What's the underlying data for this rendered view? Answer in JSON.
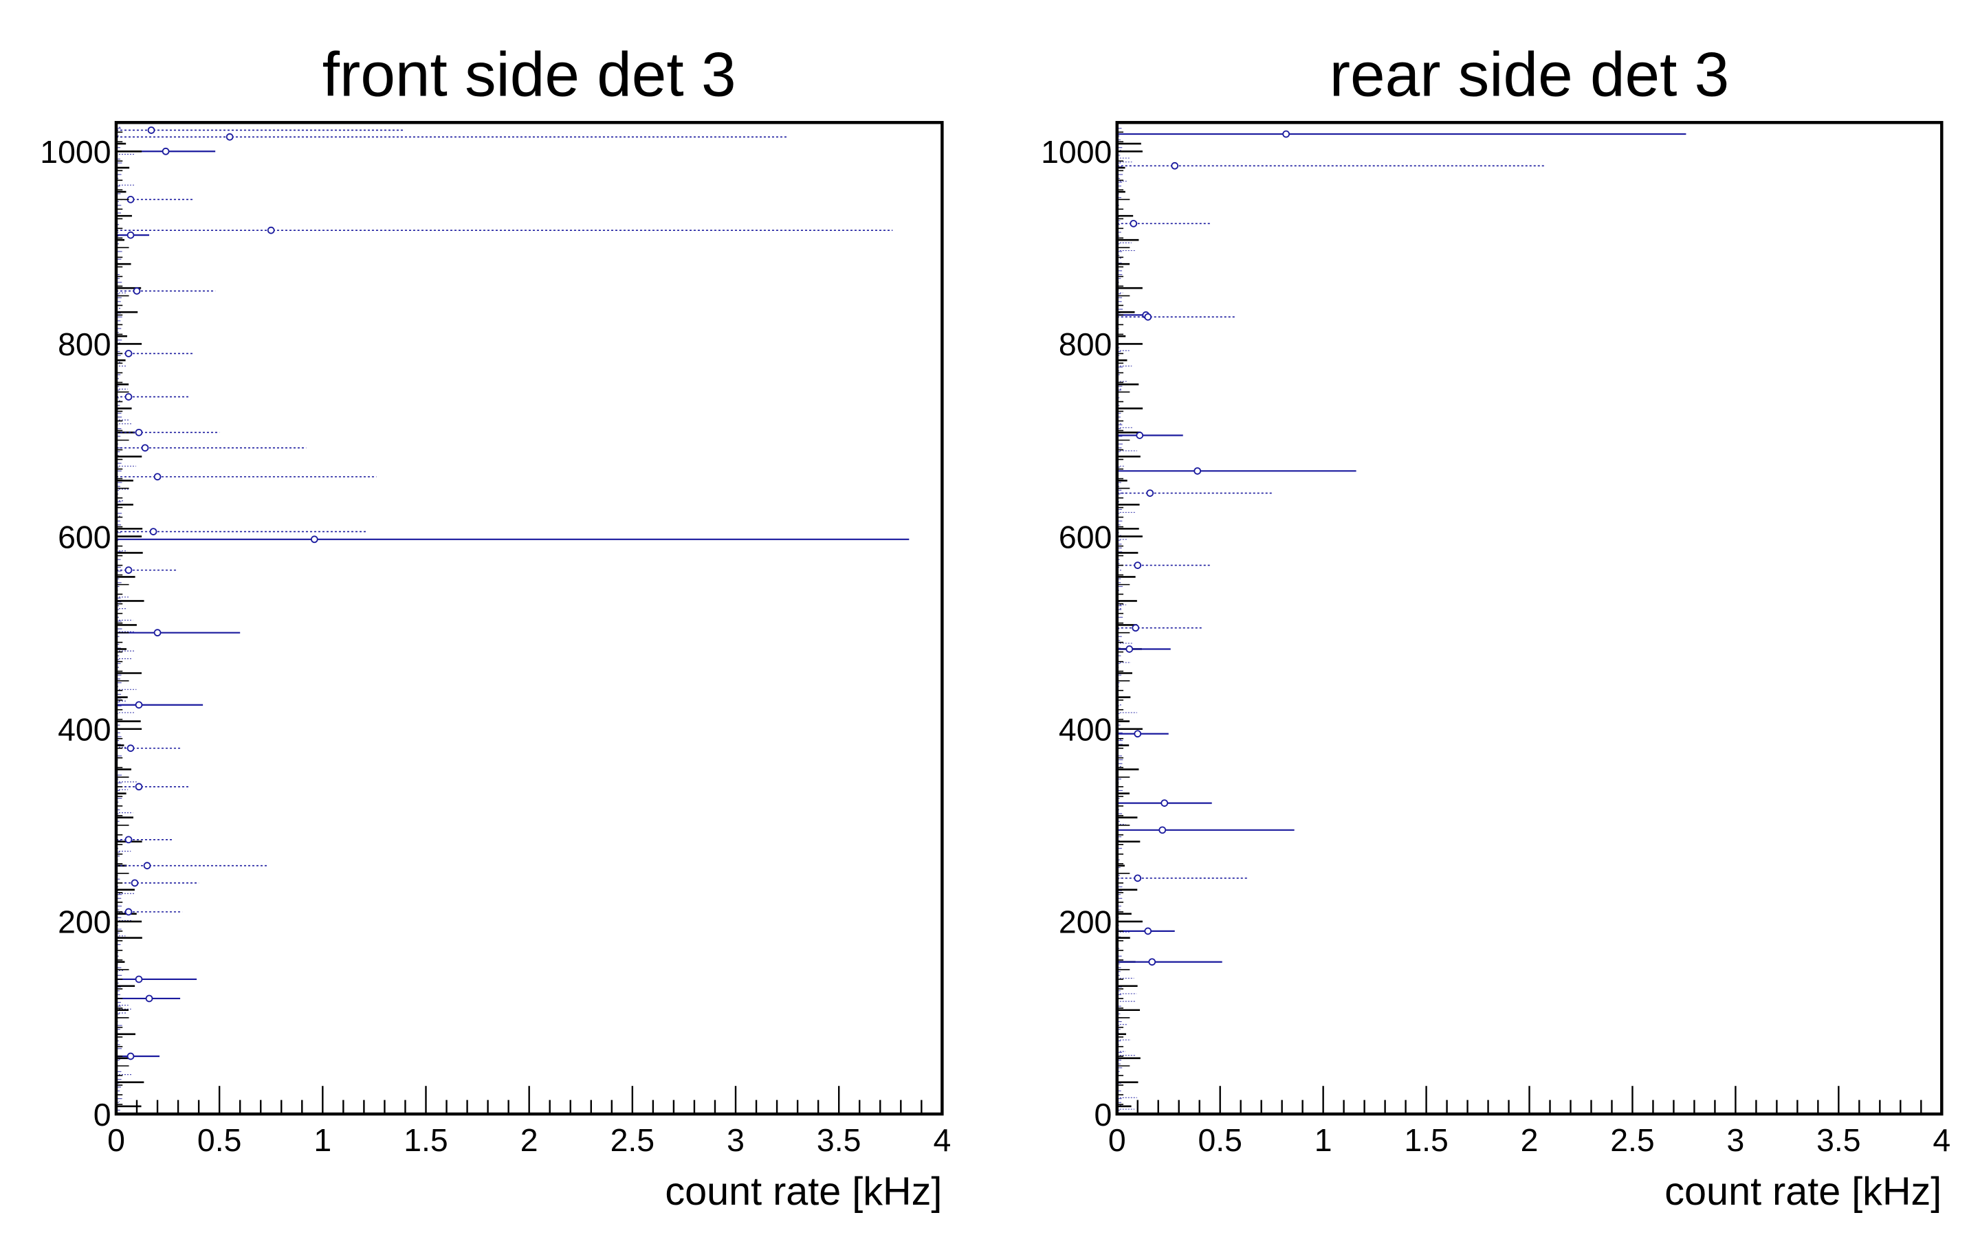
{
  "colors": {
    "series": "#1a1a9e",
    "axis": "#000000",
    "background": "#ffffff"
  },
  "chart_data": [
    {
      "type": "scatter",
      "title": "front side det 3",
      "xlabel": "count rate [kHz]",
      "ylabel": "",
      "xlim": [
        0,
        4
      ],
      "ylim": [
        0,
        1030
      ],
      "xticks": [
        "0",
        "0.5",
        "1",
        "1.5",
        "2",
        "2.5",
        "3",
        "3.5",
        "4"
      ],
      "yticks": [
        "0",
        "200",
        "400",
        "600",
        "800",
        "1000"
      ],
      "grid": false,
      "points_solid": [
        {
          "y": 1000,
          "x": 0.24,
          "xmin": 0.0,
          "xmax": 0.48
        },
        {
          "y": 913,
          "x": 0.07,
          "xmin": 0.0,
          "xmax": 0.16
        },
        {
          "y": 597,
          "x": 0.96,
          "xmin": 0.0,
          "xmax": 3.84
        },
        {
          "y": 500,
          "x": 0.2,
          "xmin": 0.0,
          "xmax": 0.6
        },
        {
          "y": 425,
          "x": 0.11,
          "xmin": 0.0,
          "xmax": 0.42
        },
        {
          "y": 140,
          "x": 0.11,
          "xmin": 0.0,
          "xmax": 0.39
        },
        {
          "y": 120,
          "x": 0.16,
          "xmin": 0.0,
          "xmax": 0.31
        },
        {
          "y": 60,
          "x": 0.07,
          "xmin": 0.0,
          "xmax": 0.21
        }
      ],
      "points_dotted": [
        {
          "y": 1022,
          "x": 0.17,
          "xmin": 0.0,
          "xmax": 1.39
        },
        {
          "y": 1015,
          "x": 0.55,
          "xmin": 0.0,
          "xmax": 3.25
        },
        {
          "y": 950,
          "x": 0.07,
          "xmin": 0.0,
          "xmax": 0.37
        },
        {
          "y": 918,
          "x": 0.75,
          "xmin": 0.0,
          "xmax": 3.76
        },
        {
          "y": 855,
          "x": 0.1,
          "xmin": 0.0,
          "xmax": 0.48
        },
        {
          "y": 790,
          "x": 0.06,
          "xmin": 0.0,
          "xmax": 0.37
        },
        {
          "y": 745,
          "x": 0.06,
          "xmin": 0.0,
          "xmax": 0.35
        },
        {
          "y": 708,
          "x": 0.11,
          "xmin": 0.0,
          "xmax": 0.5
        },
        {
          "y": 692,
          "x": 0.14,
          "xmin": 0.0,
          "xmax": 0.92
        },
        {
          "y": 662,
          "x": 0.2,
          "xmin": 0.0,
          "xmax": 1.26
        },
        {
          "y": 605,
          "x": 0.18,
          "xmin": 0.0,
          "xmax": 1.21
        },
        {
          "y": 565,
          "x": 0.06,
          "xmin": 0.0,
          "xmax": 0.29
        },
        {
          "y": 380,
          "x": 0.07,
          "xmin": 0.0,
          "xmax": 0.31
        },
        {
          "y": 340,
          "x": 0.11,
          "xmin": 0.0,
          "xmax": 0.35
        },
        {
          "y": 285,
          "x": 0.06,
          "xmin": 0.0,
          "xmax": 0.27
        },
        {
          "y": 258,
          "x": 0.15,
          "xmin": 0.0,
          "xmax": 0.73
        },
        {
          "y": 240,
          "x": 0.09,
          "xmin": 0.0,
          "xmax": 0.4
        },
        {
          "y": 210,
          "x": 0.06,
          "xmin": 0.0,
          "xmax": 0.32
        }
      ]
    },
    {
      "type": "scatter",
      "title": "rear side det 3",
      "xlabel": "count rate [kHz]",
      "ylabel": "",
      "xlim": [
        0,
        4
      ],
      "ylim": [
        0,
        1030
      ],
      "xticks": [
        "0",
        "0.5",
        "1",
        "1.5",
        "2",
        "2.5",
        "3",
        "3.5",
        "4"
      ],
      "yticks": [
        "0",
        "200",
        "400",
        "600",
        "800",
        "1000"
      ],
      "grid": false,
      "points_solid": [
        {
          "y": 1018,
          "x": 0.82,
          "xmin": 0.0,
          "xmax": 2.76
        },
        {
          "y": 830,
          "x": 0.14,
          "xmin": 0.0,
          "xmax": 0.15
        },
        {
          "y": 705,
          "x": 0.11,
          "xmin": 0.0,
          "xmax": 0.32
        },
        {
          "y": 668,
          "x": 0.39,
          "xmin": 0.0,
          "xmax": 1.16
        },
        {
          "y": 483,
          "x": 0.06,
          "xmin": 0.0,
          "xmax": 0.26
        },
        {
          "y": 395,
          "x": 0.1,
          "xmin": 0.0,
          "xmax": 0.25
        },
        {
          "y": 323,
          "x": 0.23,
          "xmin": 0.0,
          "xmax": 0.46
        },
        {
          "y": 295,
          "x": 0.22,
          "xmin": 0.0,
          "xmax": 0.86
        },
        {
          "y": 190,
          "x": 0.15,
          "xmin": 0.0,
          "xmax": 0.28
        },
        {
          "y": 158,
          "x": 0.17,
          "xmin": 0.0,
          "xmax": 0.51
        }
      ],
      "points_dotted": [
        {
          "y": 985,
          "x": 0.28,
          "xmin": 0.0,
          "xmax": 2.08
        },
        {
          "y": 925,
          "x": 0.08,
          "xmin": 0.0,
          "xmax": 0.46
        },
        {
          "y": 828,
          "x": 0.15,
          "xmin": 0.0,
          "xmax": 0.58
        },
        {
          "y": 645,
          "x": 0.16,
          "xmin": 0.0,
          "xmax": 0.76
        },
        {
          "y": 570,
          "x": 0.1,
          "xmin": 0.0,
          "xmax": 0.45
        },
        {
          "y": 505,
          "x": 0.09,
          "xmin": 0.0,
          "xmax": 0.41
        },
        {
          "y": 245,
          "x": 0.1,
          "xmin": 0.0,
          "xmax": 0.64
        }
      ]
    }
  ]
}
